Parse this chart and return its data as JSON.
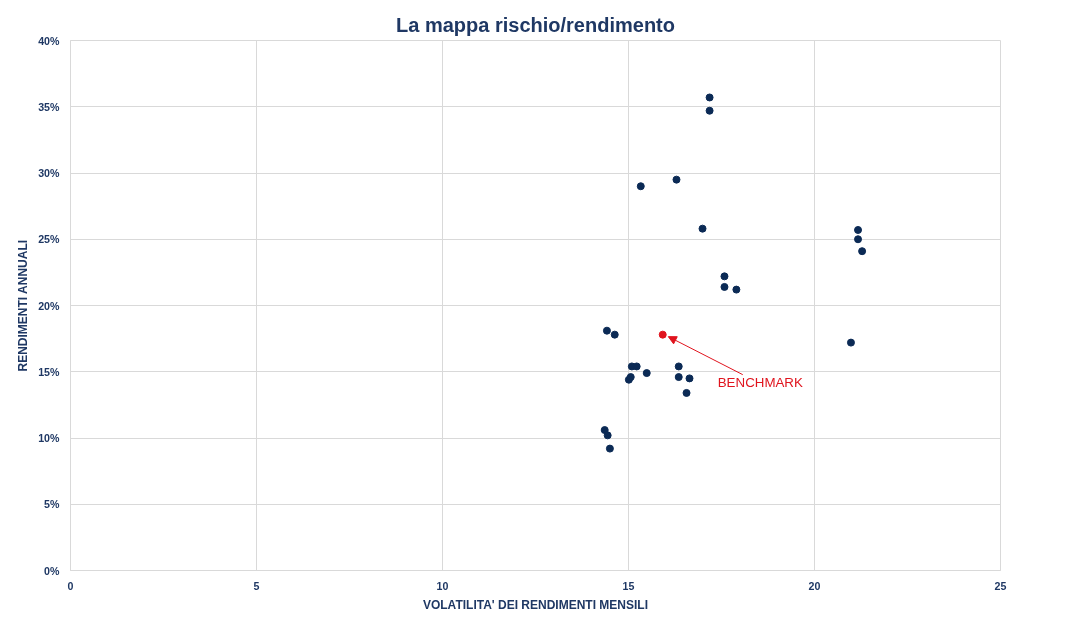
{
  "chart_data": {
    "type": "scatter",
    "title": "La mappa rischio/rendimento",
    "xlabel": "VOLATILITA' DEI RENDIMENTI MENSILI",
    "ylabel": "RENDIMENTI ANNUALI",
    "xlim": [
      0,
      25
    ],
    "xticks": [
      0,
      5,
      10,
      15,
      20,
      25
    ],
    "ylim": [
      0,
      40
    ],
    "yticks": [
      {
        "value": 0,
        "label": "0%"
      },
      {
        "value": 5,
        "label": "5%"
      },
      {
        "value": 10,
        "label": "10%"
      },
      {
        "value": 15,
        "label": "15%"
      },
      {
        "value": 20,
        "label": "20%"
      },
      {
        "value": 25,
        "label": "25%"
      },
      {
        "value": 30,
        "label": "30%"
      },
      {
        "value": 35,
        "label": "35%"
      },
      {
        "value": 40,
        "label": "40%"
      }
    ],
    "grid": true,
    "marker": "circle",
    "series": [
      {
        "color": "#0b2a55",
        "x": [
          17.18,
          17.18,
          16.29,
          15.33,
          16.99,
          21.17,
          21.17,
          21.28,
          17.58,
          17.58,
          17.9,
          14.42,
          14.63,
          20.98,
          15.09,
          15.22,
          16.35,
          15.49,
          15.06,
          15.01,
          16.35,
          16.64,
          16.56,
          14.36,
          14.44,
          14.5
        ],
        "values": [
          35.7,
          34.7,
          29.5,
          29.0,
          25.8,
          25.7,
          25.0,
          24.1,
          22.2,
          21.4,
          21.2,
          18.1,
          17.8,
          17.2,
          15.4,
          15.4,
          15.4,
          14.9,
          14.6,
          14.4,
          14.6,
          14.5,
          13.4,
          10.6,
          10.2,
          9.2
        ]
      },
      {
        "color": "#e0141e",
        "x": [
          15.92
        ],
        "values": [
          17.8
        ]
      }
    ],
    "annotations": [
      {
        "text": "BENCHMARK",
        "x": 15.92,
        "y": 17.8
      }
    ]
  }
}
